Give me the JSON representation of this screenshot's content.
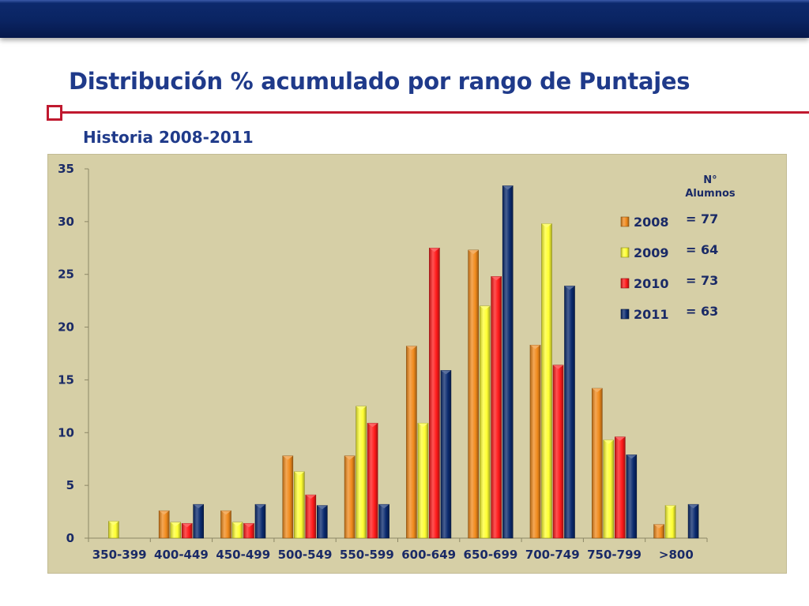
{
  "slide": {
    "title": "Distribución % acumulado por rango de Puntajes",
    "subtitle": "Historia 2008-2011"
  },
  "colors": {
    "header_bar": "#0a2462",
    "title_text": "#1f3a8a",
    "accent_red": "#c0192f",
    "chart_background": "#d6cfa6"
  },
  "chart_data": {
    "type": "bar",
    "title": "",
    "xlabel": "",
    "ylabel": "",
    "ylim": [
      0,
      35
    ],
    "yticks": [
      0,
      5,
      10,
      15,
      20,
      25,
      30,
      35
    ],
    "grid": false,
    "legend_position": "right",
    "legend_header": "N° Alumnos",
    "categories": [
      "350-399",
      "400-449",
      "450-499",
      "500-549",
      "550-599",
      "600-649",
      "650-699",
      "700-749",
      "750-799",
      ">800"
    ],
    "series": [
      {
        "name": "2008",
        "color": "#f08a1c",
        "students_label": "=  77",
        "values": [
          0,
          2.6,
          2.6,
          7.8,
          7.8,
          18.2,
          27.3,
          18.3,
          14.2,
          1.3
        ]
      },
      {
        "name": "2009",
        "color": "#ffff33",
        "students_label": "=  64",
        "values": [
          1.6,
          1.5,
          1.5,
          6.3,
          12.5,
          10.9,
          22.0,
          29.8,
          9.3,
          3.1
        ]
      },
      {
        "name": "2010",
        "color": "#ff1a1a",
        "students_label": "=  73",
        "values": [
          0,
          1.4,
          1.4,
          4.1,
          10.9,
          27.5,
          24.8,
          16.4,
          9.6,
          0
        ]
      },
      {
        "name": "2011",
        "color": "#0a2a6e",
        "students_label": "=  63",
        "values": [
          0,
          3.2,
          3.2,
          3.1,
          3.2,
          15.9,
          33.4,
          23.9,
          7.9,
          3.2
        ]
      }
    ]
  }
}
